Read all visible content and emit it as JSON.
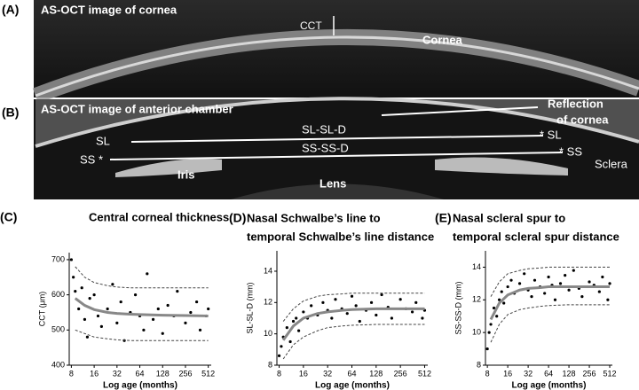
{
  "images": [
    {
      "panel": "(A)",
      "title": "AS-OCT image of cornea",
      "annotations": [
        "CCT",
        "Cornea"
      ]
    },
    {
      "panel": "(B)",
      "title": "AS-OCT image of anterior chamber",
      "annotations": [
        "Reflection",
        "of cornea",
        "SL",
        "SL-SL-D",
        "* SL",
        "SS *",
        "SS-SS-D",
        "* SS",
        "Sclera",
        "Iris",
        "Lens"
      ]
    }
  ],
  "chart_data": [
    {
      "type": "scatter",
      "panel": "(C)",
      "title": [
        "Central corneal thickness"
      ],
      "xlabel": "Log age (months)",
      "ylabel": "CCT (μm)",
      "xscale": "log",
      "xlim": [
        7.5,
        560
      ],
      "xticks": [
        8,
        16,
        32,
        64,
        128,
        256,
        512
      ],
      "ylim": [
        400,
        720
      ],
      "yticks": [
        400,
        500,
        600,
        700
      ],
      "series": [
        {
          "mode": "markers",
          "color": "#000000",
          "x": [
            8,
            8.5,
            9,
            10,
            11,
            12,
            13,
            14,
            16,
            18,
            20,
            24,
            28,
            32,
            36,
            40,
            48,
            56,
            64,
            72,
            80,
            96,
            112,
            128,
            150,
            180,
            200,
            256,
            300,
            360,
            400,
            480,
            512
          ],
          "values": [
            700,
            650,
            610,
            560,
            620,
            530,
            480,
            590,
            600,
            540,
            510,
            560,
            630,
            520,
            580,
            470,
            550,
            600,
            540,
            500,
            660,
            530,
            560,
            490,
            570,
            540,
            610,
            520,
            550,
            580,
            500,
            540,
            560
          ]
        },
        {
          "mode": "line",
          "dash": false,
          "color": "#888888",
          "x": [
            9,
            12,
            16,
            24,
            32,
            48,
            64,
            128,
            256,
            512
          ],
          "values": [
            590,
            570,
            558,
            550,
            547,
            545,
            544,
            542,
            541,
            540
          ]
        },
        {
          "mode": "line",
          "dash": true,
          "color": "#444444",
          "x": [
            9,
            12,
            16,
            24,
            32,
            48,
            64,
            128,
            256,
            512
          ],
          "values": [
            680,
            650,
            635,
            626,
            622,
            620,
            620,
            620,
            620,
            620
          ]
        },
        {
          "mode": "line",
          "dash": true,
          "color": "#444444",
          "x": [
            9,
            12,
            16,
            24,
            32,
            48,
            64,
            128,
            256,
            512
          ],
          "values": [
            500,
            490,
            480,
            475,
            472,
            470,
            470,
            470,
            470,
            470
          ]
        }
      ]
    },
    {
      "type": "scatter",
      "panel": "(D)",
      "title": [
        "Nasal Schwalbe’s line to",
        "temporal Schwalbe’s line distance"
      ],
      "xlabel": "Log age (months)",
      "ylabel": "SL-SL-D (mm)",
      "xscale": "log",
      "xlim": [
        7.5,
        560
      ],
      "xticks": [
        8,
        16,
        32,
        64,
        128,
        256,
        512
      ],
      "ylim": [
        8,
        15.3
      ],
      "yticks": [
        8,
        10,
        12,
        14
      ],
      "series": [
        {
          "mode": "markers",
          "color": "#000000",
          "x": [
            8,
            8.5,
            9,
            10,
            11,
            12,
            13,
            14,
            16,
            18,
            20,
            24,
            28,
            32,
            36,
            40,
            48,
            56,
            64,
            72,
            80,
            96,
            112,
            128,
            150,
            180,
            200,
            256,
            300,
            360,
            400,
            480,
            512
          ],
          "values": [
            8.6,
            9.2,
            9.8,
            10.4,
            9.5,
            10.8,
            11.0,
            10.2,
            11.4,
            11.0,
            11.8,
            11.2,
            12.0,
            11.5,
            11.0,
            12.2,
            11.6,
            11.3,
            12.4,
            11.8,
            10.8,
            11.5,
            12.0,
            11.2,
            12.5,
            11.7,
            11.0,
            12.2,
            11.6,
            11.4,
            12.0,
            11.0,
            11.5
          ]
        },
        {
          "mode": "line",
          "dash": false,
          "color": "#888888",
          "x": [
            9,
            12,
            16,
            24,
            32,
            48,
            64,
            128,
            256,
            512
          ],
          "values": [
            9.6,
            10.5,
            11.0,
            11.3,
            11.4,
            11.5,
            11.55,
            11.6,
            11.6,
            11.6
          ]
        },
        {
          "mode": "line",
          "dash": true,
          "color": "#444444",
          "x": [
            9,
            12,
            16,
            24,
            32,
            48,
            64,
            128,
            256,
            512
          ],
          "values": [
            10.8,
            11.6,
            12.1,
            12.4,
            12.5,
            12.55,
            12.6,
            12.6,
            12.6,
            12.6
          ]
        },
        {
          "mode": "line",
          "dash": true,
          "color": "#444444",
          "x": [
            9,
            12,
            16,
            24,
            32,
            48,
            64,
            128,
            256,
            512
          ],
          "values": [
            8.4,
            9.3,
            9.8,
            10.2,
            10.4,
            10.5,
            10.55,
            10.6,
            10.6,
            10.6
          ]
        }
      ]
    },
    {
      "type": "scatter",
      "panel": "(E)",
      "title": [
        "Nasal scleral spur to",
        "temporal scleral spur distance"
      ],
      "xlabel": "Log age (months)",
      "ylabel": "SS-SS-D (mm)",
      "xscale": "log",
      "xlim": [
        7.5,
        560
      ],
      "xticks": [
        8,
        16,
        32,
        64,
        128,
        256,
        512
      ],
      "ylim": [
        8,
        15
      ],
      "yticks": [
        8,
        10,
        12,
        14
      ],
      "series": [
        {
          "mode": "markers",
          "color": "#000000",
          "x": [
            8,
            8.5,
            9,
            10,
            11,
            12,
            13,
            14,
            16,
            18,
            20,
            24,
            28,
            32,
            36,
            40,
            48,
            56,
            64,
            72,
            80,
            96,
            112,
            128,
            150,
            180,
            200,
            256,
            300,
            360,
            400,
            480,
            512
          ],
          "values": [
            9.0,
            10.0,
            10.5,
            11.5,
            11.0,
            12.0,
            12.5,
            11.8,
            12.8,
            13.2,
            12.4,
            13.0,
            13.6,
            12.6,
            12.2,
            13.2,
            12.8,
            12.4,
            13.4,
            12.9,
            12.0,
            13.0,
            13.5,
            12.6,
            13.8,
            12.7,
            12.2,
            13.1,
            12.9,
            12.5,
            13.4,
            12.0,
            13.0
          ]
        },
        {
          "mode": "line",
          "dash": false,
          "color": "#888888",
          "x": [
            9,
            12,
            16,
            24,
            32,
            48,
            64,
            128,
            256,
            512
          ],
          "values": [
            10.8,
            11.8,
            12.3,
            12.6,
            12.7,
            12.75,
            12.8,
            12.8,
            12.8,
            12.8
          ]
        },
        {
          "mode": "line",
          "dash": true,
          "color": "#444444",
          "x": [
            9,
            12,
            16,
            24,
            32,
            48,
            64,
            128,
            256,
            512
          ],
          "values": [
            12.2,
            13.1,
            13.6,
            13.8,
            13.9,
            13.95,
            14,
            14,
            14,
            14
          ]
        },
        {
          "mode": "line",
          "dash": true,
          "color": "#444444",
          "x": [
            9,
            12,
            16,
            24,
            32,
            48,
            64,
            128,
            256,
            512
          ],
          "values": [
            9.4,
            10.5,
            11.1,
            11.4,
            11.5,
            11.6,
            11.65,
            11.7,
            11.7,
            11.7
          ]
        }
      ]
    }
  ]
}
